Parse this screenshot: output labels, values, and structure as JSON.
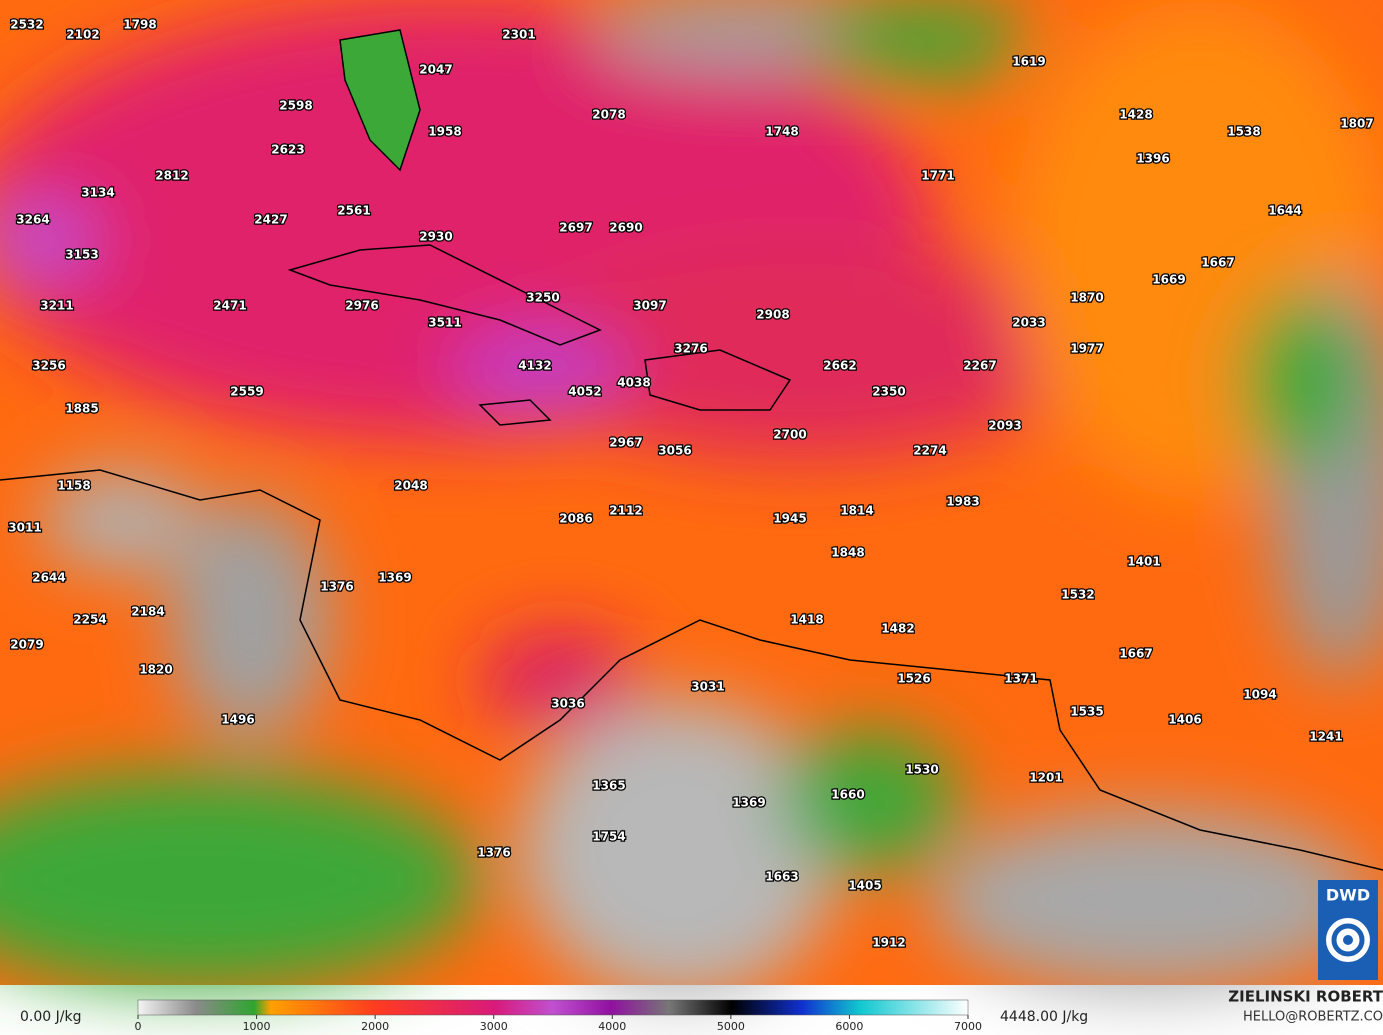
{
  "map": {
    "labels": [
      2532,
      2102,
      1798,
      2301,
      2047,
      1619,
      2598,
      2078,
      1428,
      1958,
      1748,
      1538,
      1807,
      2623,
      1396,
      2812,
      1771,
      3134,
      2561,
      1644,
      3264,
      2427,
      2697,
      2690,
      2930,
      3153,
      1667,
      1669,
      3250,
      1870,
      3211,
      2471,
      2976,
      3097,
      2908,
      3511,
      2033,
      1977,
      3276,
      3256,
      4132,
      2662,
      2267,
      2559,
      4052,
      4038,
      2350,
      1885,
      2093,
      2700,
      2967,
      3056,
      2274,
      2048,
      1158,
      1983,
      2112,
      1814,
      2086,
      1945,
      3011,
      1848,
      1401,
      2644,
      1376,
      1369,
      1532,
      2254,
      2184,
      1418,
      1482,
      2079,
      1667,
      1820,
      1526,
      1371,
      3031,
      1094,
      3036,
      1535,
      1496,
      1406,
      1241,
      1530,
      1201,
      1365,
      1369,
      1660,
      1754,
      1376,
      1663,
      1405,
      1912
    ]
  },
  "colorbar": {
    "min_label": "0.00 J/kg",
    "max_label": "4448.00 J/kg",
    "ticks": [
      0,
      1000,
      2000,
      3000,
      4000,
      5000,
      6000,
      7000
    ]
  },
  "credit": {
    "name": "ZIELINSKI ROBERT",
    "contact": "HELLO@ROBERTZ.CO",
    "logo": "DWD"
  }
}
